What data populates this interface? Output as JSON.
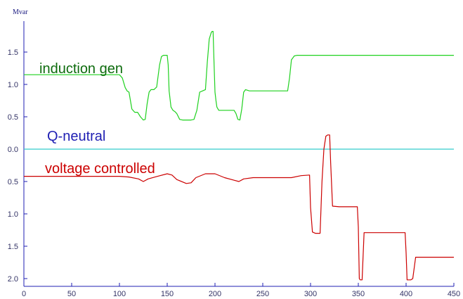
{
  "chart_data": {
    "type": "line",
    "title": "",
    "xlabel": "",
    "ylabel": "",
    "y_unit": "Mvar",
    "xlim": [
      0,
      450
    ],
    "ylim": [
      -2.1,
      1.9
    ],
    "x_ticks": [
      0,
      50,
      100,
      150,
      200,
      250,
      300,
      350,
      400,
      450
    ],
    "x_tick_labels": [
      "0",
      "50",
      "100",
      "150",
      "200",
      "250",
      "300",
      "350",
      "400",
      "450"
    ],
    "y_ticks": [
      1.5,
      1.0,
      0.5,
      0.0,
      -0.5,
      -1.0,
      -1.5,
      -2.0
    ],
    "y_tick_labels": [
      "1.5",
      "1.0",
      "0.5",
      "0.0",
      "0.5",
      "1.0",
      "1.5",
      "2.0"
    ],
    "grid": false,
    "legend": "inline labels",
    "series": [
      {
        "name": "induction gen",
        "color": "#1fd11f",
        "label_color": "#0d6b0d",
        "x": [
          0,
          100,
          103,
          106,
          108,
          110,
          113,
          116,
          119,
          122,
          125,
          127,
          129,
          131,
          133,
          136,
          139,
          142,
          144,
          146,
          148,
          150,
          151,
          152,
          154,
          156,
          158,
          160,
          163,
          166,
          170,
          175,
          178,
          181,
          184,
          187,
          190,
          192,
          194,
          196,
          197,
          198,
          199,
          200,
          201,
          202,
          204,
          206,
          210,
          215,
          220,
          222,
          224,
          226,
          228,
          230,
          232,
          234,
          236,
          240,
          250,
          260,
          270,
          276,
          278,
          280,
          283,
          286,
          300,
          310,
          320,
          330,
          340,
          350,
          360,
          370,
          380,
          390,
          400,
          410,
          420,
          430,
          440,
          450
        ],
        "y": [
          1.15,
          1.15,
          1.1,
          0.95,
          0.9,
          0.88,
          0.62,
          0.57,
          0.57,
          0.5,
          0.45,
          0.46,
          0.7,
          0.88,
          0.92,
          0.92,
          0.96,
          1.3,
          1.43,
          1.45,
          1.45,
          1.45,
          1.3,
          0.9,
          0.65,
          0.6,
          0.58,
          0.55,
          0.46,
          0.45,
          0.45,
          0.45,
          0.46,
          0.6,
          0.88,
          0.9,
          0.92,
          1.35,
          1.7,
          1.8,
          1.82,
          1.82,
          1.35,
          0.88,
          0.75,
          0.65,
          0.6,
          0.6,
          0.6,
          0.6,
          0.6,
          0.55,
          0.46,
          0.45,
          0.62,
          0.88,
          0.92,
          0.91,
          0.9,
          0.9,
          0.9,
          0.9,
          0.9,
          0.9,
          1.1,
          1.38,
          1.44,
          1.45,
          1.45,
          1.45,
          1.45,
          1.45,
          1.45,
          1.45,
          1.45,
          1.45,
          1.45,
          1.45,
          1.45,
          1.45,
          1.45,
          1.45,
          1.45,
          1.45
        ]
      },
      {
        "name": "Q-neutral",
        "color": "#33cccc",
        "label_color": "#1f1fb3",
        "x": [
          0,
          450
        ],
        "y": [
          0.0,
          0.0
        ]
      },
      {
        "name": "voltage controlled",
        "color": "#cc0000",
        "label_color": "#cc0000",
        "x": [
          0,
          100,
          110,
          120,
          125,
          130,
          140,
          150,
          155,
          160,
          170,
          175,
          180,
          190,
          200,
          210,
          220,
          225,
          230,
          240,
          250,
          260,
          270,
          280,
          290,
          299,
          300,
          302,
          305,
          310,
          312,
          314,
          316,
          318,
          320,
          321,
          323,
          330,
          340,
          349,
          350,
          351,
          352,
          354,
          356,
          370,
          390,
          399,
          400,
          401,
          402,
          405,
          407,
          410,
          420,
          430,
          450
        ],
        "y": [
          -0.42,
          -0.42,
          -0.43,
          -0.46,
          -0.5,
          -0.46,
          -0.42,
          -0.38,
          -0.4,
          -0.47,
          -0.53,
          -0.52,
          -0.44,
          -0.38,
          -0.38,
          -0.44,
          -0.48,
          -0.5,
          -0.46,
          -0.44,
          -0.44,
          -0.44,
          -0.44,
          -0.44,
          -0.41,
          -0.4,
          -0.9,
          -1.28,
          -1.3,
          -1.3,
          -0.5,
          0.0,
          0.2,
          0.22,
          0.22,
          -0.2,
          -0.88,
          -0.89,
          -0.89,
          -0.89,
          -1.2,
          -2.0,
          -2.02,
          -2.02,
          -1.29,
          -1.29,
          -1.29,
          -1.29,
          -1.6,
          -2.02,
          -2.02,
          -2.02,
          -2.0,
          -1.67,
          -1.67,
          -1.67,
          -1.67
        ]
      }
    ]
  }
}
